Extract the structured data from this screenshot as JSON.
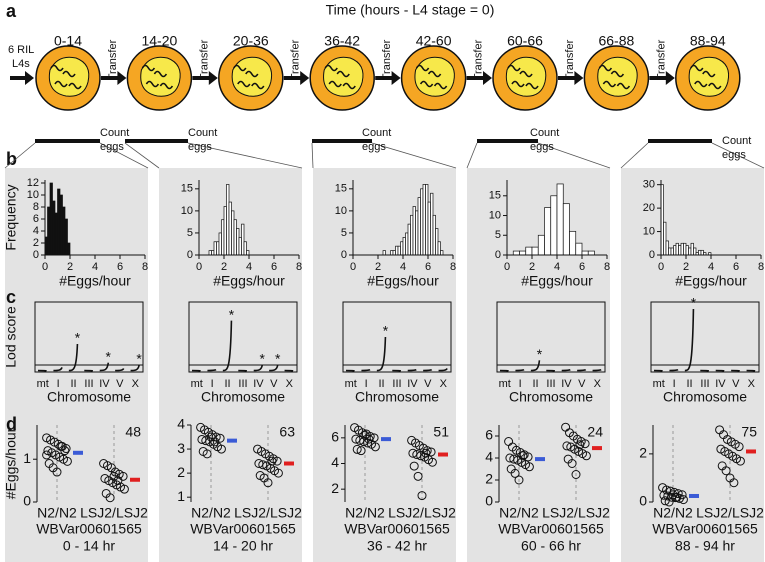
{
  "panel_a": {
    "label": "a",
    "title": "Time (hours - L4 stage = 0)",
    "start_label": [
      "6 RIL",
      "L4s"
    ],
    "intervals": [
      "0-14",
      "14-20",
      "20-36",
      "36-42",
      "42-60",
      "60-66",
      "66-88",
      "88-94"
    ],
    "transfer": "Transfer",
    "count_label": [
      "Count",
      "eggs"
    ]
  },
  "panel_labels": {
    "b": "b",
    "c": "c",
    "d": "d"
  },
  "chart_data": [
    {
      "type": "histogram",
      "ylabel": "Frequency",
      "xlabel": "#Eggs/hour",
      "color": "#111111",
      "bins": [
        0,
        0.2,
        0.4,
        0.6,
        0.8,
        1.0,
        1.2,
        1.4,
        1.6,
        1.8,
        2.0
      ],
      "counts": [
        3,
        8,
        12,
        9,
        7,
        11,
        10,
        8,
        6,
        2
      ],
      "xlim": [
        0,
        8
      ],
      "xticks": [
        0,
        2,
        4,
        6,
        8
      ],
      "ylim": [
        0,
        12.5
      ],
      "yticks": [
        0,
        2,
        4,
        6,
        8,
        10,
        12
      ]
    },
    {
      "type": "histogram",
      "xlabel": "#Eggs/hour",
      "color": "#ffffff",
      "bins": [
        0.8,
        1.0,
        1.2,
        1.4,
        1.6,
        1.8,
        2.0,
        2.2,
        2.4,
        2.6,
        2.8,
        3.0,
        3.2,
        3.4,
        3.6,
        3.8,
        4.0
      ],
      "counts": [
        1,
        1,
        3,
        3,
        5,
        8,
        11,
        16,
        12,
        10,
        8,
        6,
        4,
        7,
        3,
        1
      ],
      "xlim": [
        0,
        8
      ],
      "xticks": [
        0,
        2,
        4,
        6,
        8
      ],
      "ylim": [
        0,
        17
      ],
      "yticks": [
        0,
        5,
        10,
        15
      ]
    },
    {
      "type": "histogram",
      "xlabel": "#Eggs/hour",
      "color": "#ffffff",
      "bins": [
        2.4,
        2.6,
        2.8,
        3.0,
        3.2,
        3.4,
        3.6,
        3.8,
        4.0,
        4.2,
        4.4,
        4.6,
        4.8,
        5.0,
        5.2,
        5.4,
        5.6,
        5.8,
        6.0,
        6.2,
        6.4,
        6.6,
        6.8,
        7.0,
        7.2
      ],
      "counts": [
        1,
        0,
        0,
        1,
        1,
        2,
        2,
        3,
        4,
        5,
        7,
        9,
        11,
        10,
        13,
        15,
        16,
        16,
        12,
        14,
        9,
        6,
        3,
        1
      ],
      "xlim": [
        0,
        8
      ],
      "xticks": [
        0,
        2,
        4,
        6,
        8
      ],
      "ylim": [
        0,
        17
      ],
      "yticks": [
        0,
        5,
        10,
        15
      ]
    },
    {
      "type": "histogram",
      "xlabel": "#Eggs/hour",
      "color": "#ffffff",
      "bins": [
        0.5,
        1.0,
        1.5,
        2.0,
        2.5,
        3.0,
        3.5,
        4.0,
        4.5,
        5.0,
        5.5,
        6.0,
        6.5,
        7.0
      ],
      "counts": [
        1,
        1,
        2,
        2,
        5,
        12,
        15,
        18,
        13,
        6,
        3,
        1,
        1
      ],
      "xlim": [
        0,
        8
      ],
      "xticks": [
        0,
        2,
        4,
        6,
        8
      ],
      "ylim": [
        0,
        19
      ],
      "yticks": [
        0,
        5,
        10,
        15
      ]
    },
    {
      "type": "histogram",
      "xlabel": "#Eggs/hour",
      "color": "#ffffff",
      "bins": [
        0,
        0.2,
        0.4,
        0.6,
        0.8,
        1.0,
        1.2,
        1.4,
        1.6,
        1.8,
        2.0,
        2.2,
        2.4,
        2.6,
        2.8,
        3.0,
        3.2,
        3.4,
        3.6,
        3.8,
        4.0
      ],
      "counts": [
        30,
        14,
        6,
        3,
        3,
        4,
        5,
        4,
        5,
        5,
        4,
        3,
        5,
        3,
        1,
        2,
        2,
        1,
        0,
        1
      ],
      "xlim": [
        0,
        8
      ],
      "xticks": [
        0,
        2,
        4,
        6,
        8
      ],
      "ylim": [
        0,
        32
      ],
      "yticks": [
        0,
        10,
        20,
        30
      ]
    },
    {
      "type": "lod",
      "ylabel": "Lod score",
      "xlabel": "Chromosome",
      "categories": [
        "mt",
        "I",
        "II",
        "III",
        "IV",
        "V",
        "X"
      ],
      "values": [
        0.5,
        2,
        12,
        0.5,
        4,
        1.5,
        3
      ],
      "star_labels": [
        null,
        null,
        "*",
        null,
        "*",
        null,
        "*"
      ],
      "threshold": 3,
      "ylim": [
        0,
        30
      ]
    },
    {
      "type": "lod",
      "xlabel": "Chromosome",
      "categories": [
        "mt",
        "I",
        "II",
        "III",
        "IV",
        "V",
        "X"
      ],
      "values": [
        0.5,
        1,
        22,
        0.5,
        3,
        3,
        0.5
      ],
      "star_labels": [
        null,
        null,
        "*",
        null,
        "*",
        "*",
        null
      ],
      "threshold": 3,
      "ylim": [
        0,
        30
      ]
    },
    {
      "type": "lod",
      "xlabel": "Chromosome",
      "categories": [
        "mt",
        "I",
        "II",
        "III",
        "IV",
        "V",
        "X"
      ],
      "values": [
        0.5,
        1,
        15,
        0.5,
        1,
        1,
        1.5
      ],
      "star_labels": [
        null,
        null,
        "*",
        null,
        null,
        null,
        null
      ],
      "threshold": 3,
      "ylim": [
        0,
        30
      ]
    },
    {
      "type": "lod",
      "xlabel": "Chromosome",
      "categories": [
        "mt",
        "I",
        "II",
        "III",
        "IV",
        "V",
        "X"
      ],
      "values": [
        0.5,
        1,
        5,
        0.5,
        1,
        1,
        1
      ],
      "star_labels": [
        null,
        null,
        "*",
        null,
        null,
        null,
        null
      ],
      "threshold": 3,
      "ylim": [
        0,
        30
      ]
    },
    {
      "type": "lod",
      "xlabel": "Chromosome",
      "categories": [
        "mt",
        "I",
        "II",
        "III",
        "IV",
        "V",
        "X"
      ],
      "values": [
        0.5,
        1,
        27,
        0.5,
        0.5,
        0.5,
        0.5
      ],
      "star_labels": [
        null,
        null,
        "*",
        null,
        null,
        null,
        null
      ],
      "threshold": 3,
      "ylim": [
        0,
        30
      ]
    },
    {
      "type": "strip",
      "ylabel": "#Eggs/hour",
      "categories": [
        "N2/N2",
        "LSJ2/LSJ2"
      ],
      "n_label": 48,
      "xlabel": "WBVar00601565",
      "time_label": "0 - 14 hr",
      "ylim": [
        0,
        1.8
      ],
      "yticks": [
        0,
        1
      ],
      "groups": [
        {
          "values": [
            1.5,
            1.45,
            1.4,
            1.35,
            1.3,
            1.25,
            1.2,
            1.15,
            1.1,
            1.05,
            1.0,
            0.95,
            0.9,
            0.8,
            0.7,
            1.3,
            1.2,
            1.1
          ],
          "mean": 1.15,
          "color": "#3b5bd6"
        },
        {
          "values": [
            0.9,
            0.85,
            0.8,
            0.7,
            0.65,
            0.6,
            0.55,
            0.5,
            0.45,
            0.4,
            0.35,
            0.3,
            0.2,
            0.1,
            0.6,
            0.5
          ],
          "mean": 0.52,
          "color": "#e02020"
        }
      ]
    },
    {
      "type": "strip",
      "categories": [
        "N2/N2",
        "LSJ2/LSJ2"
      ],
      "n_label": 63,
      "xlabel": "WBVar00601565",
      "time_label": "14 - 20 hr",
      "ylim": [
        0.8,
        4
      ],
      "yticks": [
        1,
        2,
        3,
        4
      ],
      "groups": [
        {
          "values": [
            3.9,
            3.8,
            3.7,
            3.6,
            3.5,
            3.45,
            3.4,
            3.35,
            3.3,
            3.2,
            3.1,
            3.0,
            2.9,
            2.8,
            3.5,
            3.3
          ],
          "mean": 3.35,
          "color": "#3b5bd6"
        },
        {
          "values": [
            3.0,
            2.9,
            2.8,
            2.7,
            2.6,
            2.5,
            2.4,
            2.35,
            2.3,
            2.2,
            2.1,
            2.0,
            1.9,
            1.8,
            1.6,
            2.5
          ],
          "mean": 2.4,
          "color": "#e02020"
        }
      ]
    },
    {
      "type": "strip",
      "categories": [
        "N2/N2",
        "LSJ2/LSJ2"
      ],
      "n_label": 51,
      "xlabel": "WBVar00601565",
      "time_label": "36 - 42 hr",
      "ylim": [
        1,
        7
      ],
      "yticks": [
        2,
        4,
        6
      ],
      "groups": [
        {
          "values": [
            6.8,
            6.6,
            6.4,
            6.3,
            6.1,
            6.0,
            5.9,
            5.8,
            5.7,
            5.6,
            5.5,
            5.3,
            5.1,
            5.0,
            6.2,
            5.9
          ],
          "mean": 5.9,
          "color": "#3b5bd6"
        },
        {
          "values": [
            5.8,
            5.6,
            5.4,
            5.2,
            5.0,
            4.9,
            4.8,
            4.7,
            4.6,
            4.5,
            4.3,
            4.1,
            3.8,
            3.0,
            1.5,
            4.8
          ],
          "mean": 4.7,
          "color": "#e02020"
        }
      ]
    },
    {
      "type": "strip",
      "categories": [
        "N2/N2",
        "LSJ2/LSJ2"
      ],
      "n_label": 24,
      "xlabel": "WBVar00601565",
      "time_label": "60 - 66 hr",
      "ylim": [
        0,
        7
      ],
      "yticks": [
        0,
        2,
        4,
        6
      ],
      "groups": [
        {
          "values": [
            5.5,
            5.0,
            4.7,
            4.5,
            4.3,
            4.1,
            4.0,
            3.9,
            3.8,
            3.6,
            3.4,
            3.2,
            3.0,
            2.6,
            2.0,
            4.2
          ],
          "mean": 3.9,
          "color": "#3b5bd6"
        },
        {
          "values": [
            6.8,
            6.3,
            6.0,
            5.7,
            5.5,
            5.3,
            5.1,
            5.0,
            4.8,
            4.6,
            4.4,
            4.2,
            3.9,
            3.5,
            2.5,
            5.2
          ],
          "mean": 4.9,
          "color": "#e02020"
        }
      ]
    },
    {
      "type": "strip",
      "categories": [
        "N2/N2",
        "LSJ2/LSJ2"
      ],
      "n_label": 75,
      "xlabel": "WBVar00601565",
      "time_label": "88 - 94 hr",
      "ylim": [
        0,
        3.2
      ],
      "yticks": [
        0,
        2
      ],
      "groups": [
        {
          "values": [
            0.6,
            0.5,
            0.45,
            0.4,
            0.35,
            0.3,
            0.28,
            0.25,
            0.2,
            0.18,
            0.15,
            0.1,
            0.05,
            0.0,
            0.3,
            0.2
          ],
          "mean": 0.25,
          "color": "#3b5bd6"
        },
        {
          "values": [
            3.0,
            2.8,
            2.6,
            2.5,
            2.4,
            2.3,
            2.2,
            2.1,
            2.0,
            1.9,
            1.8,
            1.7,
            1.5,
            1.3,
            1.0,
            0.8
          ],
          "mean": 2.1,
          "color": "#e02020"
        }
      ]
    }
  ]
}
